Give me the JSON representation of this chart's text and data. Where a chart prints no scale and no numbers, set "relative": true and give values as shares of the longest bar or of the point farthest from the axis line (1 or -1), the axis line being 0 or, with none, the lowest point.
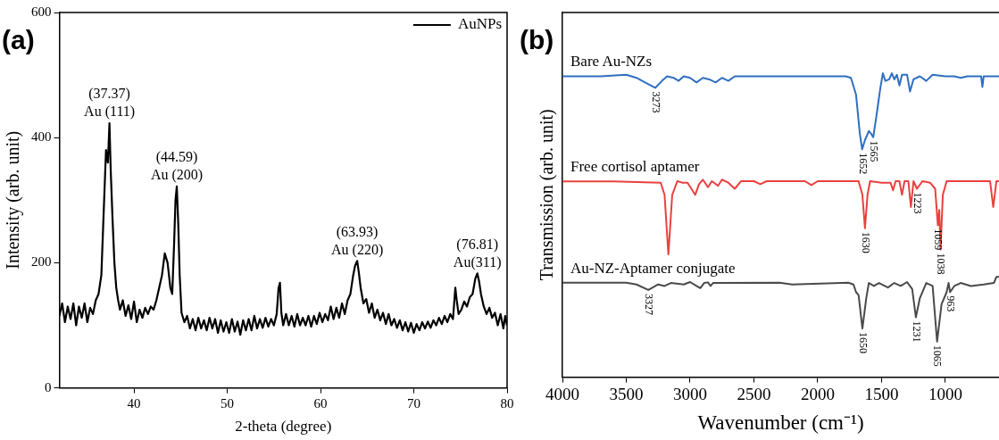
{
  "chart_data": [
    {
      "type": "line",
      "title": "(a)",
      "xlabel": "2-theta (degree)",
      "ylabel": "Intensity (arb. unit)",
      "xlim": [
        32,
        80
      ],
      "xticks": [
        40,
        50,
        60,
        70,
        80
      ],
      "ylim": [
        0,
        600
      ],
      "yticks": [
        0,
        200,
        400,
        600
      ],
      "legend": "top right",
      "marker": "none",
      "grid": false,
      "series": [
        {
          "name": "AuNPs",
          "color": "#000000",
          "x": [
            32,
            32.3,
            32.6,
            32.9,
            33.2,
            33.5,
            33.8,
            34.1,
            34.4,
            34.7,
            35,
            35.3,
            35.6,
            35.9,
            36.2,
            36.5,
            36.8,
            37.0,
            37.2,
            37.37,
            37.5,
            37.7,
            37.9,
            38.1,
            38.3,
            38.5,
            38.8,
            39.1,
            39.4,
            39.7,
            40.0,
            40.3,
            40.6,
            40.9,
            41.2,
            41.5,
            41.8,
            42.1,
            42.4,
            42.7,
            43.0,
            43.3,
            43.6,
            43.9,
            44.1,
            44.3,
            44.45,
            44.59,
            44.75,
            44.9,
            45.1,
            45.4,
            45.7,
            46.0,
            46.3,
            46.6,
            46.9,
            47.2,
            47.5,
            47.8,
            48.1,
            48.4,
            48.7,
            49.0,
            49.3,
            49.6,
            49.9,
            50.2,
            50.5,
            50.8,
            51.1,
            51.4,
            51.7,
            52.0,
            52.3,
            52.6,
            52.9,
            53.2,
            53.5,
            53.8,
            54.1,
            54.4,
            54.7,
            55.0,
            55.3,
            55.5,
            55.65,
            55.8,
            56.0,
            56.3,
            56.6,
            56.9,
            57.2,
            57.5,
            57.8,
            58.1,
            58.4,
            58.7,
            59.0,
            59.3,
            59.6,
            59.9,
            60.2,
            60.5,
            60.8,
            61.1,
            61.4,
            61.7,
            62.0,
            62.3,
            62.6,
            62.9,
            63.2,
            63.5,
            63.7,
            63.93,
            64.1,
            64.3,
            64.6,
            64.9,
            65.2,
            65.5,
            65.8,
            66.1,
            66.4,
            66.7,
            67.0,
            67.3,
            67.6,
            67.9,
            68.2,
            68.5,
            68.8,
            69.1,
            69.4,
            69.7,
            70.0,
            70.3,
            70.6,
            70.9,
            71.2,
            71.5,
            71.8,
            72.1,
            72.4,
            72.7,
            73.0,
            73.3,
            73.6,
            73.9,
            74.2,
            74.45,
            74.6,
            74.8,
            75.1,
            75.4,
            75.7,
            76.0,
            76.3,
            76.6,
            76.81,
            77.0,
            77.2,
            77.5,
            77.8,
            78.1,
            78.4,
            78.7,
            79.0,
            79.3,
            79.6,
            79.8,
            80.0
          ],
          "values": [
            115,
            135,
            105,
            130,
            110,
            135,
            100,
            130,
            112,
            135,
            105,
            128,
            118,
            140,
            150,
            180,
            300,
            380,
            360,
            423,
            350,
            270,
            200,
            160,
            140,
            125,
            140,
            115,
            132,
            110,
            138,
            105,
            125,
            112,
            128,
            118,
            130,
            125,
            140,
            160,
            180,
            215,
            200,
            160,
            150,
            230,
            300,
            322,
            260,
            180,
            120,
            105,
            115,
            95,
            110,
            92,
            112,
            95,
            108,
            92,
            112,
            95,
            110,
            88,
            108,
            90,
            105,
            88,
            110,
            90,
            106,
            85,
            108,
            92,
            110,
            92,
            115,
            95,
            110,
            96,
            112,
            98,
            110,
            100,
            118,
            160,
            168,
            120,
            100,
            118,
            100,
            115,
            98,
            118,
            100,
            112,
            100,
            115,
            98,
            115,
            102,
            120,
            105,
            118,
            108,
            130,
            110,
            128,
            112,
            135,
            118,
            140,
            150,
            180,
            195,
            203,
            185,
            160,
            135,
            142,
            120,
            135,
            112,
            125,
            108,
            120,
            102,
            118,
            100,
            110,
            96,
            108,
            92,
            105,
            90,
            104,
            88,
            102,
            92,
            105,
            95,
            106,
            96,
            108,
            100,
            112,
            102,
            115,
            105,
            118,
            110,
            160,
            140,
            118,
            125,
            138,
            130,
            145,
            150,
            175,
            183,
            170,
            150,
            130,
            118,
            128,
            112,
            120,
            100,
            118,
            95,
            115,
            100
          ]
        }
      ],
      "annotations": [
        {
          "text": "(37.37)\nAu (111)",
          "x": 37.37,
          "y": 423
        },
        {
          "text": "(44.59)\nAu (200)",
          "x": 44.59,
          "y": 322
        },
        {
          "text": "(63.93)\nAu (220)",
          "x": 63.93,
          "y": 203
        },
        {
          "text": "(76.81)\nAu(311)",
          "x": 76.81,
          "y": 183
        }
      ]
    },
    {
      "type": "line",
      "title": "(b)",
      "xlabel": "Wavenumber (cm⁻¹)",
      "ylabel": "Transmission (arb. unit)",
      "xlim": [
        4000,
        580
      ],
      "xticks": [
        4000,
        3500,
        3000,
        2500,
        2000,
        1500,
        1000
      ],
      "relative": true,
      "marker": "none",
      "grid": false,
      "legend": false,
      "series": [
        {
          "name": "Bare Au-NZs",
          "color": "#2f6fc0",
          "x": [
            4000,
            3700,
            3500,
            3420,
            3330,
            3273,
            3220,
            3180,
            3130,
            3090,
            3050,
            3000,
            2950,
            2900,
            2850,
            2800,
            2750,
            2700,
            2650,
            2400,
            2000,
            1780,
            1740,
            1700,
            1670,
            1652,
            1630,
            1600,
            1580,
            1565,
            1540,
            1510,
            1490,
            1470,
            1440,
            1420,
            1400,
            1380,
            1360,
            1340,
            1300,
            1277,
            1250,
            1200,
            1150,
            1100,
            1000,
            930,
            880,
            830,
            720,
            710,
            700,
            580
          ],
          "values": [
            0.99,
            0.99,
            0.995,
            0.985,
            0.965,
            0.952,
            0.975,
            0.99,
            0.985,
            0.975,
            0.99,
            0.985,
            0.97,
            0.985,
            0.98,
            0.97,
            0.985,
            0.975,
            0.99,
            0.99,
            0.99,
            0.99,
            0.985,
            0.93,
            0.8,
            0.75,
            0.78,
            0.81,
            0.8,
            0.79,
            0.86,
            0.95,
            1,
            0.975,
            0.98,
            1,
            0.98,
            0.995,
            0.96,
            0.995,
            0.995,
            0.94,
            0.98,
            0.99,
            0.975,
            0.995,
            0.99,
            0.99,
            0.985,
            0.99,
            0.99,
            0.955,
            0.99,
            0.99
          ]
        },
        {
          "name": "Free cortisol aptamer",
          "color": "#e8413f",
          "x": [
            4000,
            3600,
            3230,
            3200,
            3170,
            3140,
            3100,
            3060,
            3020,
            2990,
            2960,
            2930,
            2900,
            2860,
            2830,
            2780,
            2750,
            2700,
            2650,
            2600,
            2500,
            2450,
            2400,
            2100,
            2050,
            2000,
            1680,
            1650,
            1630,
            1610,
            1590,
            1500,
            1430,
            1410,
            1390,
            1360,
            1340,
            1320,
            1290,
            1270,
            1250,
            1223,
            1180,
            1120,
            1080,
            1059,
            1048,
            1038,
            1020,
            990,
            800,
            650,
            625,
            600,
            580
          ],
          "values": [
            0.644,
            0.644,
            0.64,
            0.6,
            0.404,
            0.6,
            0.645,
            0.64,
            0.64,
            0.62,
            0.6,
            0.635,
            0.65,
            0.625,
            0.645,
            0.63,
            0.65,
            0.64,
            0.62,
            0.645,
            0.645,
            0.635,
            0.645,
            0.645,
            0.632,
            0.645,
            0.645,
            0.6,
            0.49,
            0.6,
            0.645,
            0.64,
            0.64,
            0.615,
            0.645,
            0.645,
            0.6,
            0.645,
            0.645,
            0.56,
            0.645,
            0.62,
            0.645,
            0.64,
            0.62,
            0.5,
            0.55,
            0.42,
            0.6,
            0.645,
            0.645,
            0.645,
            0.56,
            0.645,
            0.645
          ]
        },
        {
          "name": "Au-NZ-Aptamer conjugate",
          "color": "#4a4a4a",
          "x": [
            4000,
            3500,
            3420,
            3327,
            3250,
            3200,
            3150,
            3050,
            3000,
            2950,
            2920,
            2890,
            2860,
            2840,
            2820,
            2300,
            2200,
            1760,
            1720,
            1700,
            1680,
            1650,
            1620,
            1600,
            1560,
            1520,
            1450,
            1400,
            1350,
            1300,
            1260,
            1231,
            1200,
            1150,
            1100,
            1065,
            1030,
            990,
            975,
            963,
            930,
            880,
            800,
            700,
            620,
            600,
            580
          ],
          "values": [
            0.311,
            0.311,
            0.305,
            0.287,
            0.305,
            0.3,
            0.31,
            0.305,
            0.313,
            0.3,
            0.293,
            0.31,
            0.312,
            0.3,
            0.31,
            0.311,
            0.305,
            0.311,
            0.305,
            0.28,
            0.27,
            0.16,
            0.26,
            0.31,
            0.3,
            0.31,
            0.295,
            0.31,
            0.3,
            0.313,
            0.29,
            0.197,
            0.26,
            0.31,
            0.3,
            0.117,
            0.24,
            0.28,
            0.31,
            0.28,
            0.3,
            0.31,
            0.3,
            0.305,
            0.31,
            0.33,
            0.33
          ]
        }
      ],
      "annotations": [
        {
          "text": "3273",
          "x": 3273,
          "y": 0.952
        },
        {
          "text": "1652",
          "x": 1652,
          "y": 0.75
        },
        {
          "text": "1565",
          "x": 1565,
          "y": 0.79
        },
        {
          "text": "1630",
          "x": 1630,
          "y": 0.49
        },
        {
          "text": "1223",
          "x": 1223,
          "y": 0.62
        },
        {
          "text": "1059",
          "x": 1059,
          "y": 0.5
        },
        {
          "text": "1038",
          "x": 1038,
          "y": 0.42
        },
        {
          "text": "3327",
          "x": 3327,
          "y": 0.287
        },
        {
          "text": "1650",
          "x": 1650,
          "y": 0.16
        },
        {
          "text": "1231",
          "x": 1231,
          "y": 0.197
        },
        {
          "text": "1065",
          "x": 1065,
          "y": 0.117
        },
        {
          "text": "963",
          "x": 963,
          "y": 0.28
        }
      ]
    }
  ]
}
